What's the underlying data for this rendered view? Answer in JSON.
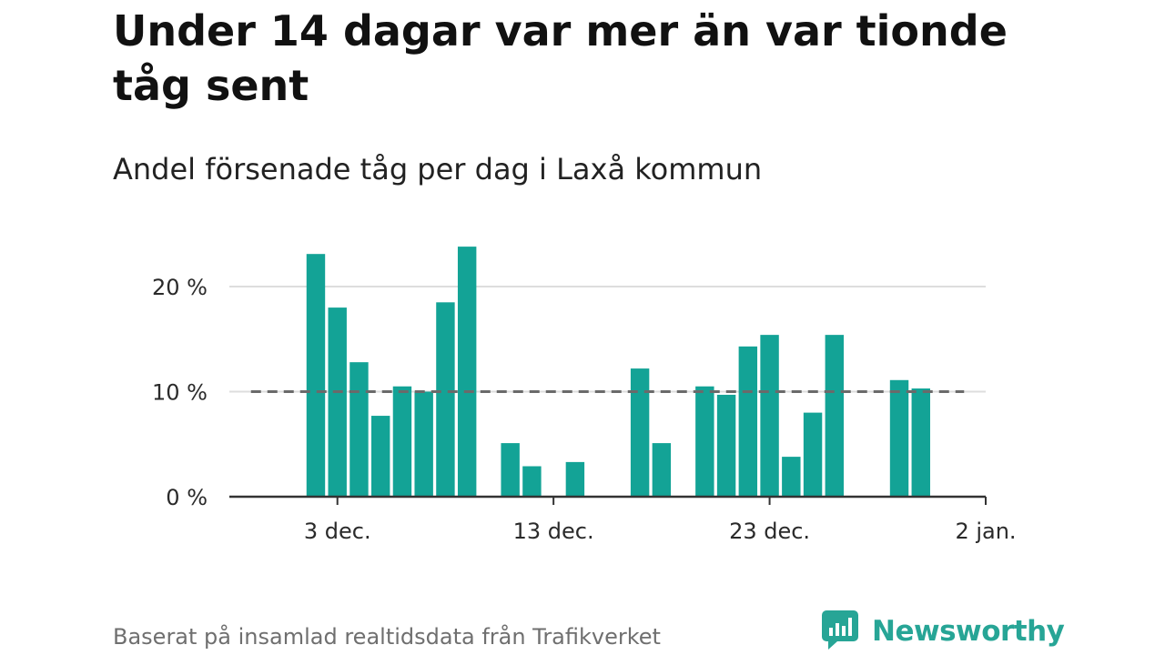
{
  "title": "Under 14 dagar var mer än var tionde tåg sent",
  "subtitle": "Andel försenade tåg per dag i Laxå kommun",
  "footer": "Baserat på insamlad realtidsdata från Trafikverket",
  "brand": {
    "name": "Newsworthy",
    "color": "#27a596",
    "icon": "newsworthy-logo-icon"
  },
  "colors": {
    "bar": "#13a396",
    "reference_line": "#6a6a6a",
    "grid": "#dddddd",
    "axis": "#333333"
  },
  "chart_data": {
    "type": "bar",
    "x_axis": {
      "type": "date",
      "range": [
        "2022-11-28",
        "2023-01-02"
      ],
      "ticks": [
        {
          "date": "2022-12-03",
          "label": "3 dec."
        },
        {
          "date": "2022-12-13",
          "label": "13 dec."
        },
        {
          "date": "2022-12-23",
          "label": "23 dec."
        },
        {
          "date": "2023-01-02",
          "label": "2 jan."
        }
      ]
    },
    "y_axis": {
      "range": [
        0,
        25
      ],
      "ticks": [
        {
          "value": 0,
          "label": "0 %"
        },
        {
          "value": 10,
          "label": "10 %"
        },
        {
          "value": 20,
          "label": "20 %"
        }
      ],
      "grid": true
    },
    "reference_line": {
      "value": 10,
      "style": "dashed",
      "from": "2022-11-29",
      "to": "2023-01-01"
    },
    "bars": [
      {
        "date": "2022-12-02",
        "value": 23.1
      },
      {
        "date": "2022-12-03",
        "value": 18.0
      },
      {
        "date": "2022-12-04",
        "value": 12.8
      },
      {
        "date": "2022-12-05",
        "value": 7.7
      },
      {
        "date": "2022-12-06",
        "value": 10.5
      },
      {
        "date": "2022-12-07",
        "value": 10.0
      },
      {
        "date": "2022-12-08",
        "value": 18.5
      },
      {
        "date": "2022-12-09",
        "value": 23.8
      },
      {
        "date": "2022-12-11",
        "value": 5.1
      },
      {
        "date": "2022-12-12",
        "value": 2.9
      },
      {
        "date": "2022-12-14",
        "value": 3.3
      },
      {
        "date": "2022-12-17",
        "value": 12.2
      },
      {
        "date": "2022-12-18",
        "value": 5.1
      },
      {
        "date": "2022-12-20",
        "value": 10.5
      },
      {
        "date": "2022-12-21",
        "value": 9.7
      },
      {
        "date": "2022-12-22",
        "value": 14.3
      },
      {
        "date": "2022-12-23",
        "value": 15.4
      },
      {
        "date": "2022-12-24",
        "value": 3.8
      },
      {
        "date": "2022-12-25",
        "value": 8.0
      },
      {
        "date": "2022-12-26",
        "value": 15.4
      },
      {
        "date": "2022-12-29",
        "value": 11.1
      },
      {
        "date": "2022-12-30",
        "value": 10.3
      }
    ]
  }
}
